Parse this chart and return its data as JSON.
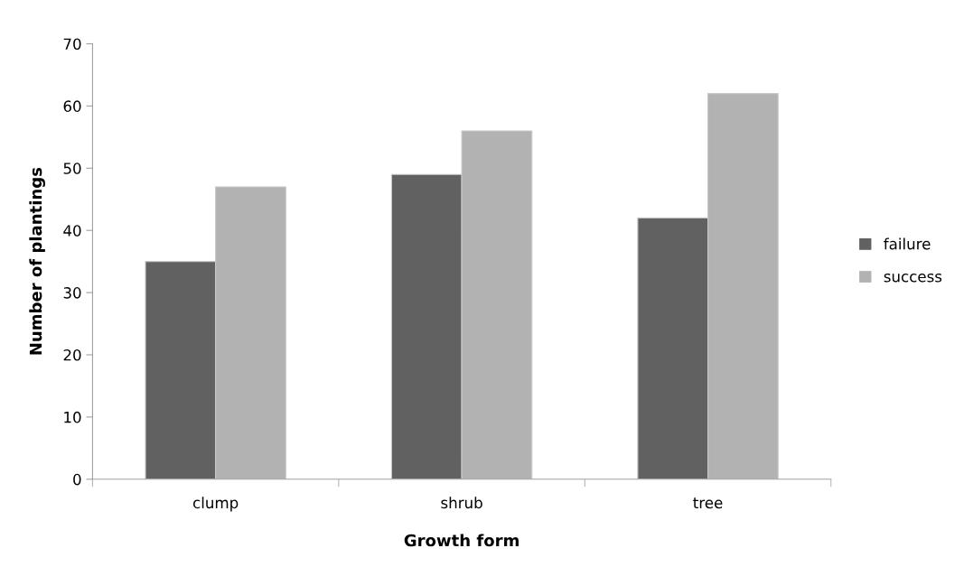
{
  "chart_data": {
    "type": "bar",
    "xlabel": "Growth form",
    "ylabel": "Number of plantings",
    "categories": [
      "clump",
      "shrub",
      "tree"
    ],
    "series": [
      {
        "name": "failure",
        "color": "#616161",
        "values": [
          35,
          49,
          42
        ]
      },
      {
        "name": "success",
        "color": "#b2b2b2",
        "values": [
          47,
          56,
          62
        ]
      }
    ],
    "ylim": [
      0,
      70
    ],
    "yticks": [
      0,
      10,
      20,
      30,
      40,
      50,
      60,
      70
    ],
    "grid": false,
    "legend": "right"
  }
}
